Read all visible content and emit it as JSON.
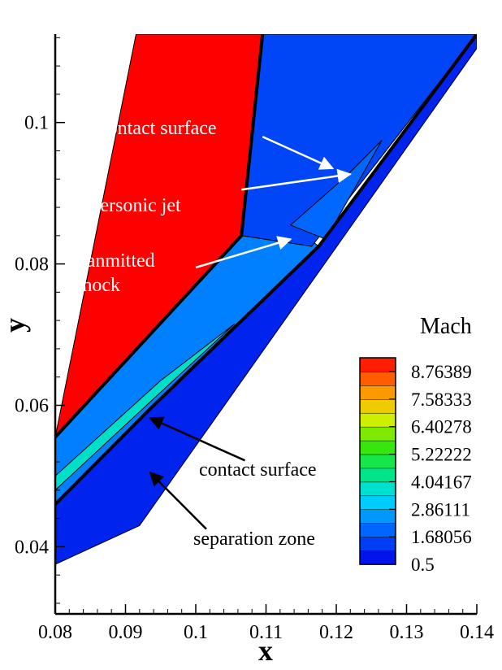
{
  "chart_data": {
    "type": "heatmap",
    "title": "",
    "xlabel": "x",
    "ylabel": "y",
    "xlim": [
      0.08,
      0.14
    ],
    "ylim": [
      0.0305,
      0.1125
    ],
    "x_ticks": [
      {
        "value": 0.08,
        "label": "0.08"
      },
      {
        "value": 0.09,
        "label": "0.09"
      },
      {
        "value": 0.1,
        "label": "0.1"
      },
      {
        "value": 0.11,
        "label": "0.11"
      },
      {
        "value": 0.12,
        "label": "0.12"
      },
      {
        "value": 0.13,
        "label": "0.13"
      },
      {
        "value": 0.14,
        "label": "0.14"
      }
    ],
    "y_ticks": [
      {
        "value": 0.04,
        "label": "0.04"
      },
      {
        "value": 0.06,
        "label": "0.06"
      },
      {
        "value": 0.08,
        "label": "0.08"
      },
      {
        "value": 0.1,
        "label": "0.1"
      }
    ],
    "colorbar": {
      "title": "Mach",
      "min": 0.5,
      "max": 9.35417,
      "levels": 15,
      "tick_labels": [
        "8.76389",
        "7.58333",
        "6.40278",
        "5.22222",
        "4.04167",
        "2.86111",
        "1.68056",
        "0.5"
      ],
      "tick_values": [
        8.76389,
        7.58333,
        6.40278,
        5.22222,
        4.04167,
        2.86111,
        1.68056,
        0.5
      ]
    },
    "regions": [
      {
        "mach": 9.35,
        "polygon": [
          [
            0.08,
            0.0555
          ],
          [
            0.0915,
            0.1125
          ],
          [
            0.1095,
            0.1125
          ],
          [
            0.1065,
            0.084
          ],
          [
            0.08,
            0.0555
          ]
        ]
      },
      {
        "mach": 2.3,
        "polygon": [
          [
            0.08,
            0.0555
          ],
          [
            0.1065,
            0.084
          ],
          [
            0.1115,
            0.087
          ],
          [
            0.1175,
            0.0825
          ],
          [
            0.0935,
            0.0595
          ],
          [
            0.08,
            0.046
          ]
        ]
      },
      {
        "mach": 1.5,
        "polygon": [
          [
            0.1065,
            0.084
          ],
          [
            0.1095,
            0.1125
          ],
          [
            0.14,
            0.1125
          ],
          [
            0.1165,
            0.0825
          ],
          [
            0.1065,
            0.084
          ]
        ]
      },
      {
        "mach": 1.0,
        "polygon": [
          [
            0.08,
            0.046
          ],
          [
            0.0935,
            0.0595
          ],
          [
            0.1175,
            0.0825
          ],
          [
            0.14,
            0.1125
          ],
          [
            0.14,
            0.1105
          ],
          [
            0.092,
            0.043
          ],
          [
            0.08,
            0.0375
          ]
        ]
      },
      {
        "mach": 2.0,
        "polygon": [
          [
            0.1135,
            0.0855
          ],
          [
            0.1215,
            0.0925
          ],
          [
            0.1265,
            0.0975
          ],
          [
            0.1185,
            0.0835
          ],
          [
            0.1135,
            0.0855
          ]
        ]
      },
      {
        "mach": 3.8,
        "polygon": [
          [
            0.08,
            0.05
          ],
          [
            0.095,
            0.0635
          ],
          [
            0.1055,
            0.0715
          ],
          [
            0.093,
            0.06
          ],
          [
            0.08,
            0.048
          ]
        ]
      }
    ],
    "contact_lines": [
      [
        [
          0.08,
          0.0555
        ],
        [
          0.1065,
          0.084
        ],
        [
          0.1095,
          0.1125
        ]
      ],
      [
        [
          0.08,
          0.046
        ],
        [
          0.0935,
          0.0595
        ],
        [
          0.1175,
          0.0825
        ],
        [
          0.14,
          0.1125
        ]
      ]
    ],
    "annotations": [
      {
        "text": "contact surface",
        "color": "#ffffff",
        "from": [
          0.1095,
          0.098
        ],
        "to": [
          0.1195,
          0.0935
        ]
      },
      {
        "text": "supersonic jet",
        "color": "#ffffff",
        "from": [
          0.1065,
          0.0905
        ],
        "to": [
          0.122,
          0.0927
        ]
      },
      {
        "text": "tranmitted shock",
        "color": "#ffffff",
        "lines": [
          "tranmitted",
          "shock"
        ],
        "from": [
          0.1,
          0.0795
        ],
        "to": [
          0.1135,
          0.0835
        ]
      },
      {
        "text": "contact surface",
        "color": "#000000",
        "from": [
          0.107,
          0.0522
        ],
        "to": [
          0.0935,
          0.0582
        ]
      },
      {
        "text": "separation zone",
        "color": "#000000",
        "from": [
          0.1015,
          0.0425
        ],
        "to": [
          0.0935,
          0.0505
        ]
      }
    ]
  }
}
